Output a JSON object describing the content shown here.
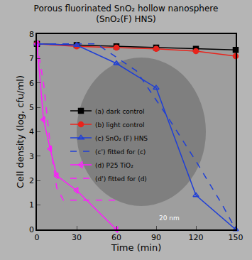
{
  "chart_data": {
    "type": "line",
    "title": "Porous fluorinated SnO₂ hollow nanosphere",
    "subtitle": "(SnO₂(F) HNS)",
    "x_label": "Time (min)",
    "y_label": "Cell density (log, cfu/ml)",
    "annotations": [
      "20 nm"
    ],
    "xlim": [
      0,
      150
    ],
    "xticks": [
      0,
      30,
      60,
      90,
      120,
      150
    ],
    "ylim": [
      0,
      8
    ],
    "yticks": [
      0,
      1,
      2,
      3,
      4,
      5,
      6,
      7,
      8
    ],
    "legend": "left",
    "series": [
      {
        "name": "(a) dark control",
        "color": "#000000",
        "marker": "square",
        "line_style": "solid",
        "x": [
          0,
          30,
          60,
          90,
          120,
          150
        ],
        "values": [
          7.6,
          7.55,
          7.5,
          7.45,
          7.4,
          7.35
        ]
      },
      {
        "name": "(b) light control",
        "color": "#e8241c",
        "marker": "circle",
        "line_style": "solid",
        "x": [
          0,
          30,
          60,
          90,
          120,
          150
        ],
        "values": [
          7.6,
          7.5,
          7.45,
          7.4,
          7.3,
          7.1
        ]
      },
      {
        "name": "(c) SnO₂ (F) HNS",
        "color": "#1f3fd6",
        "marker": "triangle-up-open",
        "line_style": "solid",
        "x": [
          0,
          30,
          60,
          90,
          120,
          150
        ],
        "values": [
          7.6,
          7.55,
          6.8,
          5.8,
          1.4,
          0
        ]
      },
      {
        "name": "(c') fitted for (c)",
        "color": "#1f3fd6",
        "line_style": "dash",
        "x": [
          0,
          45,
          75,
          100,
          120,
          140,
          150
        ],
        "values": [
          7.6,
          7.6,
          6.5,
          4.5,
          2.8,
          1.0,
          0
        ]
      },
      {
        "name": "(d) P25 TiO₂",
        "color": "#ff1aff",
        "marker": "triangle-left-open",
        "line_style": "solid",
        "x": [
          0,
          5,
          10,
          15,
          30,
          60
        ],
        "values": [
          7.6,
          4.5,
          3.3,
          2.2,
          1.6,
          0
        ]
      },
      {
        "name": "(d') fitted for (d)",
        "color": "#ff1aff",
        "line_style": "dash",
        "x": [
          0,
          5,
          10,
          15,
          20,
          60
        ],
        "values": [
          7.6,
          6.0,
          3.5,
          1.7,
          1.2,
          1.2
        ]
      }
    ]
  }
}
